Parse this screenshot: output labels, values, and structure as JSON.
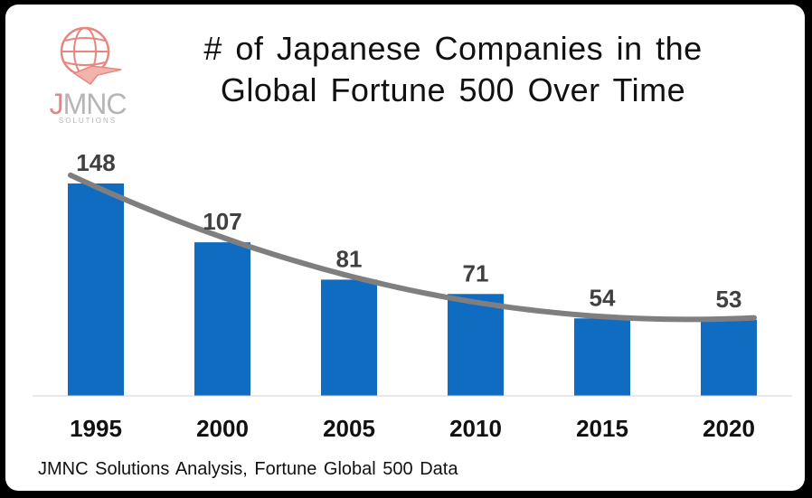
{
  "logo": {
    "wordmark_j": "J",
    "wordmark_rest": "MNC",
    "tagline": "SOLUTIONS"
  },
  "source_note": "JMNC Solutions Analysis, Fortune Global 500 Data",
  "colors": {
    "bar": "#0f6cc0",
    "trendline": "#7f7f7f",
    "background": "#ffffff",
    "frame": "#000000"
  },
  "chart_data": {
    "type": "bar",
    "title_lines": [
      "# of Japanese Companies in the",
      "Global Fortune 500 Over Time"
    ],
    "categories": [
      "1995",
      "2000",
      "2005",
      "2010",
      "2015",
      "2020"
    ],
    "values": [
      148,
      107,
      81,
      71,
      54,
      53
    ],
    "data_labels": [
      "148",
      "107",
      "81",
      "71",
      "54",
      "53"
    ],
    "trendline": true,
    "ylim": [
      0,
      148
    ],
    "grid": false,
    "legend": "none"
  }
}
